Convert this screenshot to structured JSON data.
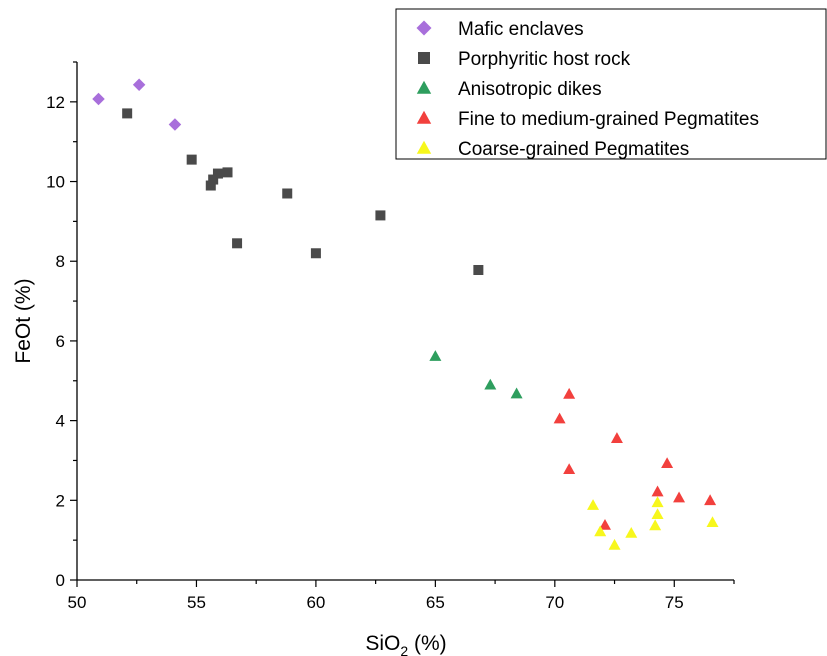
{
  "chart_data": {
    "type": "scatter",
    "xlabel": "SiO",
    "xlabel_sub": "2",
    "xlabel_suffix": " (%)",
    "ylabel": "FeOt (%)",
    "xlim": [
      50,
      77.5
    ],
    "ylim": [
      0,
      13
    ],
    "x_ticks": [
      50,
      55,
      60,
      65,
      70,
      75
    ],
    "y_ticks": [
      0,
      2,
      4,
      6,
      8,
      10,
      12
    ],
    "grid": false,
    "legend_position": "top-right",
    "series": [
      {
        "name": "Mafic enclaves",
        "marker": "diamond",
        "color": "#a86fdb",
        "points": [
          [
            50.9,
            12.07
          ],
          [
            52.6,
            12.43
          ],
          [
            54.1,
            11.43
          ]
        ]
      },
      {
        "name": "Porphyritic host rock",
        "marker": "square",
        "color": "#4a4a4a",
        "points": [
          [
            52.1,
            11.71
          ],
          [
            54.8,
            10.55
          ],
          [
            55.6,
            9.9
          ],
          [
            55.7,
            10.05
          ],
          [
            55.9,
            10.2
          ],
          [
            56.3,
            10.23
          ],
          [
            56.7,
            8.45
          ],
          [
            58.8,
            9.7
          ],
          [
            60.0,
            8.2
          ],
          [
            62.7,
            9.15
          ],
          [
            66.8,
            7.78
          ]
        ]
      },
      {
        "name": "Anisotropic dikes",
        "marker": "triangle",
        "color": "#2e9e5e",
        "points": [
          [
            65.0,
            5.62
          ],
          [
            67.3,
            4.9
          ],
          [
            68.4,
            4.68
          ]
        ]
      },
      {
        "name": "Fine to medium-grained Pegmatites",
        "marker": "triangle",
        "color": "#f2403d",
        "points": [
          [
            70.2,
            4.05
          ],
          [
            70.6,
            4.67
          ],
          [
            70.6,
            2.78
          ],
          [
            72.1,
            1.38
          ],
          [
            72.6,
            3.56
          ],
          [
            74.3,
            2.22
          ],
          [
            74.7,
            2.93
          ],
          [
            75.2,
            2.07
          ],
          [
            76.5,
            2.0
          ]
        ]
      },
      {
        "name": "Coarse-grained Pegmatites",
        "marker": "triangle",
        "color": "#f7f71c",
        "points": [
          [
            71.6,
            1.88
          ],
          [
            71.9,
            1.22
          ],
          [
            72.5,
            0.88
          ],
          [
            73.2,
            1.18
          ],
          [
            74.2,
            1.37
          ],
          [
            74.3,
            1.65
          ],
          [
            74.3,
            1.95
          ],
          [
            76.6,
            1.45
          ]
        ]
      }
    ]
  }
}
